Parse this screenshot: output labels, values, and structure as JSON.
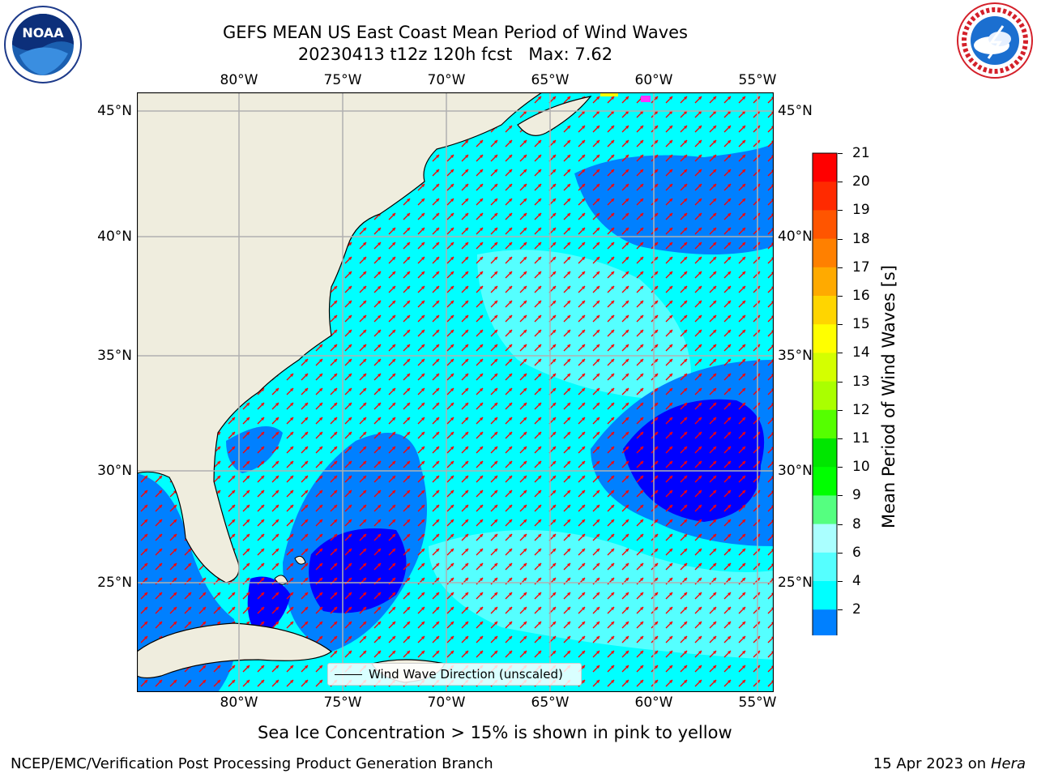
{
  "title": {
    "line1": "GEFS MEAN US East Coast Mean Period of Wind Waves",
    "line2": "20230413 t12z 120h fcst   Max: 7.62"
  },
  "logos": {
    "left": {
      "name": "noaa-logo",
      "text": "NOAA"
    },
    "right": {
      "name": "nws-logo",
      "text": "NATIONAL WEATHER SERVICE"
    }
  },
  "map": {
    "lon_ticks": [
      "80°W",
      "75°W",
      "70°W",
      "65°W",
      "60°W",
      "55°W"
    ],
    "lat_ticks": [
      "45°N",
      "40°N",
      "35°N",
      "30°N",
      "25°N"
    ],
    "legend_label": "Wind Wave Direction (unscaled)",
    "land_color": "#efedde",
    "arrow_color": "#ff0000",
    "gridline_color": "#b0b0b0"
  },
  "colorbar": {
    "title": "Mean Period of Wind Waves [s]",
    "labels": [
      "21",
      "20",
      "19",
      "18",
      "17",
      "16",
      "15",
      "14",
      "13",
      "12",
      "11",
      "10",
      "9",
      "8",
      "6",
      "4",
      "2"
    ],
    "colors": [
      "#ff0000",
      "#ff2a00",
      "#ff5500",
      "#ff8000",
      "#ffaa00",
      "#ffd500",
      "#ffff00",
      "#d4ff00",
      "#aaff00",
      "#55ff00",
      "#00e600",
      "#00ff00",
      "#55ff80",
      "#aaffff",
      "#55ffff",
      "#00ffff",
      "#0080ff"
    ],
    "underflow_color": "#0000ff"
  },
  "note": "Sea Ice Concentration > 15% is shown in pink to yellow",
  "footer": {
    "left": "NCEP/EMC/Verification Post Processing Product Generation Branch",
    "date": "15 Apr 2023 on ",
    "host": "Hera"
  }
}
